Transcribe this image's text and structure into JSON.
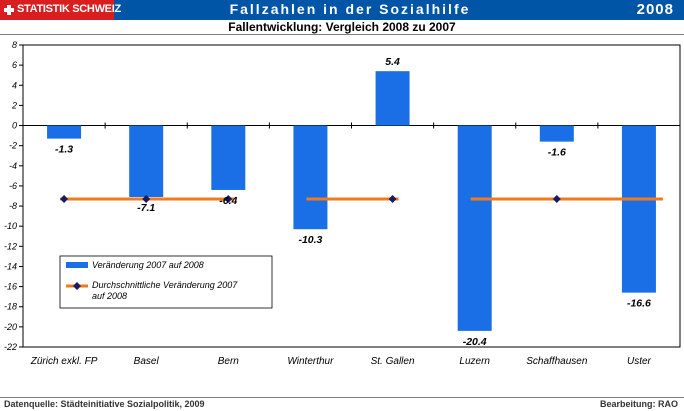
{
  "header": {
    "logo_text": "STATISTIK SCHWEIZ",
    "title": "Fallzahlen in der Sozialhilfe",
    "year": "2008",
    "subtitle": "Fallentwicklung: Vergleich 2008 zu 2007"
  },
  "footer": {
    "source": "Datenquelle: Städteinitiative Sozialpolitik, 2009",
    "editor": "Bearbeitung: RAO"
  },
  "colors": {
    "header_blue": "#0055a6",
    "logo_red": "#d81e1e",
    "bar": "#1b6fe6",
    "average_line": "#f07a1e",
    "marker": "#1a1a5e"
  },
  "chart_data": {
    "type": "bar",
    "categories": [
      "Zürich exkl. FP",
      "Basel",
      "Bern",
      "Winterthur",
      "St. Gallen",
      "Luzern",
      "Schaffhausen",
      "Uster"
    ],
    "series": [
      {
        "name": "Veränderung 2007 auf 2008",
        "values": [
          -1.3,
          -7.1,
          -6.4,
          -10.3,
          5.4,
          -20.4,
          -1.6,
          -16.6
        ]
      }
    ],
    "average_line": {
      "name": "Durchschnittliche Veränderung 2007 auf 2008",
      "value": -7.3
    },
    "data_labels": [
      "-1.3",
      "-7.1",
      "-6.4",
      "-10.3",
      "5.4",
      "-20.4",
      "-1.6",
      "-16.6"
    ],
    "ylim": [
      -22,
      8
    ],
    "yticks": [
      8,
      6,
      4,
      2,
      0,
      -2,
      -4,
      -6,
      -8,
      -10,
      -12,
      -14,
      -16,
      -18,
      -20,
      -22
    ],
    "legend_position": "lower-left",
    "grid": false
  }
}
